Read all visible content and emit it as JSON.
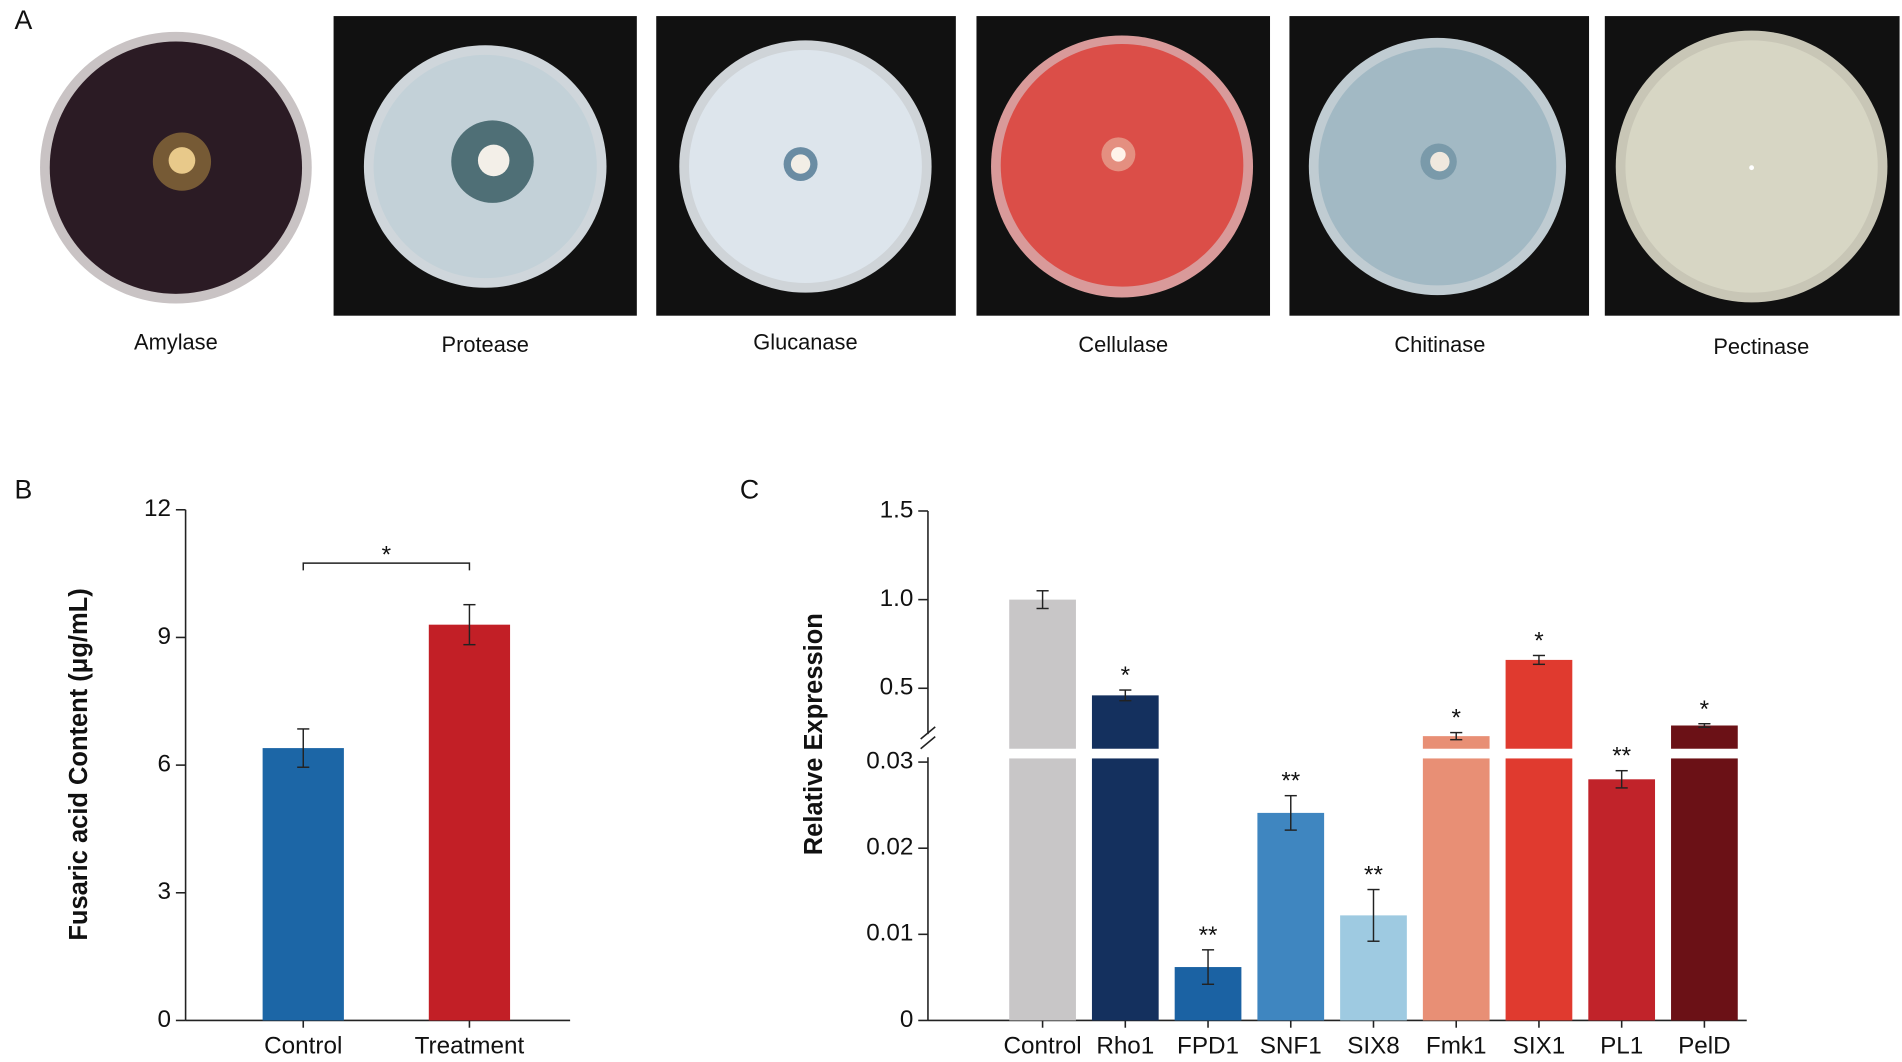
{
  "panels": [
    "A",
    "B",
    "C"
  ],
  "plates": [
    "Amylase",
    "Protease",
    "Glucanase",
    "Cellulase",
    "Chitinase",
    "Pectinase"
  ],
  "chart_data": [
    {
      "type": "bar",
      "ylabel": "Fusaric acid Content (μg/mL)",
      "categories": [
        "Control",
        "Treatment"
      ],
      "values": [
        6.4,
        9.3
      ],
      "errors": [
        0.45,
        0.47
      ],
      "colors": [
        "#1c66a6",
        "#c21f26"
      ],
      "ylim": [
        0,
        12
      ],
      "yticks": [
        0,
        3,
        6,
        9,
        12
      ],
      "significance": "*"
    },
    {
      "type": "broken_bar",
      "ylabel": "Relative Expression",
      "categories": [
        "Control",
        "Rho1",
        "FPD1",
        "SNF1",
        "SIX8",
        "Fmk1",
        "SIX1",
        "PL1",
        "PelD"
      ],
      "values": [
        1,
        0.46,
        0.0062,
        0.0241,
        0.0122,
        0.23,
        0.66,
        0.028,
        0.29
      ],
      "errors": [
        0.05,
        0.03,
        0.002,
        0.002,
        0.003,
        0.02,
        0.025,
        0.001,
        0.01
      ],
      "colors": [
        "#c8c6c7",
        "#14305e",
        "#1b62a3",
        "#3f86c0",
        "#9ecae1",
        "#e88f75",
        "#e03a2f",
        "#c1232a",
        "#6b1116"
      ],
      "significance": [
        null,
        "*",
        "**",
        "**",
        "**",
        "*",
        "*",
        "**",
        "*"
      ],
      "ylim_lower": [
        0,
        0.03
      ],
      "yticks_lower": [
        0,
        0.01,
        0.02,
        0.03
      ],
      "ylim_upper": [
        0.2,
        1.5
      ],
      "yticks_upper": [
        0.5,
        {
          "value": 1,
          "label": "1.0"
        },
        1.5
      ]
    }
  ]
}
